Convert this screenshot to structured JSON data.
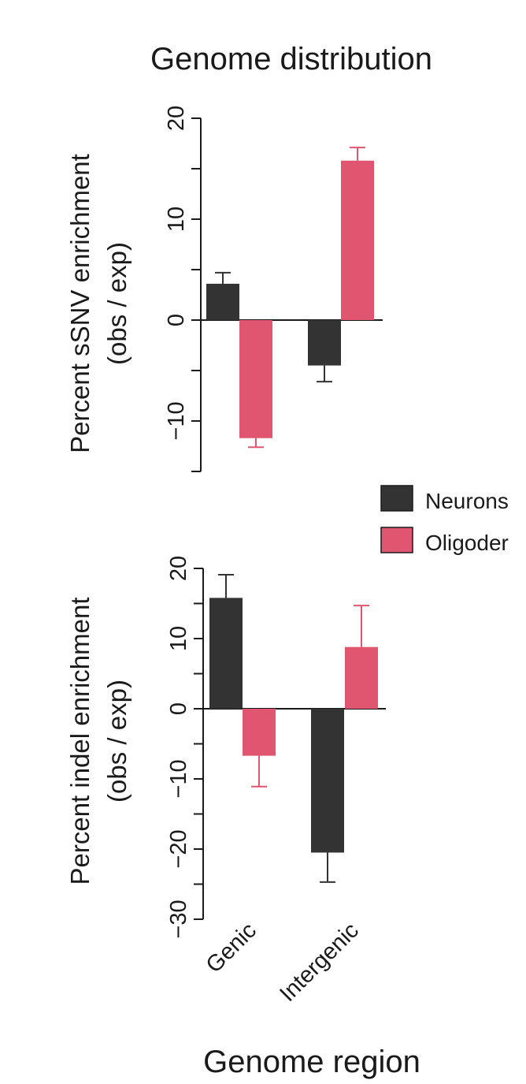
{
  "figure": {
    "title": "Genome distribution",
    "xlabel": "Genome region"
  },
  "legend": [
    {
      "label": "Neurons",
      "color": "#333333"
    },
    {
      "label": "Oligoder",
      "color": "#e0556f"
    }
  ],
  "colors": {
    "neurons": "#333333",
    "oligodendrocytes": "#e0556f",
    "axis": "#1a1a1a"
  },
  "chart_data": [
    {
      "type": "bar",
      "title": "Genome distribution",
      "ylabel_line1": "Percent sSNV enrichment",
      "ylabel_line2": "(obs / exp)",
      "categories": [
        "Genic",
        "Intergenic"
      ],
      "ylim": [
        -15,
        20
      ],
      "yticks": [
        20,
        10,
        0,
        -10
      ],
      "ytick_labels": [
        "20",
        "10",
        "0",
        "−10"
      ],
      "series": [
        {
          "name": "Neurons",
          "values": [
            3.6,
            -4.5
          ],
          "errors": [
            1.1,
            1.6
          ]
        },
        {
          "name": "Oligoder",
          "values": [
            -11.7,
            15.8
          ],
          "errors": [
            0.9,
            1.3
          ]
        }
      ]
    },
    {
      "type": "bar",
      "ylabel_line1": "Percent indel enrichment",
      "ylabel_line2": "(obs / exp)",
      "categories": [
        "Genic",
        "Intergenic"
      ],
      "xtick_labels": [
        "Genic",
        "Intergenic"
      ],
      "xlabel": "Genome region",
      "ylim": [
        -30,
        20
      ],
      "yticks": [
        20,
        10,
        0,
        -10,
        -20,
        -30
      ],
      "ytick_labels": [
        "20",
        "10",
        "0",
        "−10",
        "−20",
        "−30"
      ],
      "series": [
        {
          "name": "Neurons",
          "values": [
            15.8,
            -20.5
          ],
          "errors": [
            3.3,
            4.2
          ]
        },
        {
          "name": "Oligoder",
          "values": [
            -6.7,
            8.8
          ],
          "errors": [
            4.4,
            5.9
          ]
        }
      ]
    }
  ]
}
